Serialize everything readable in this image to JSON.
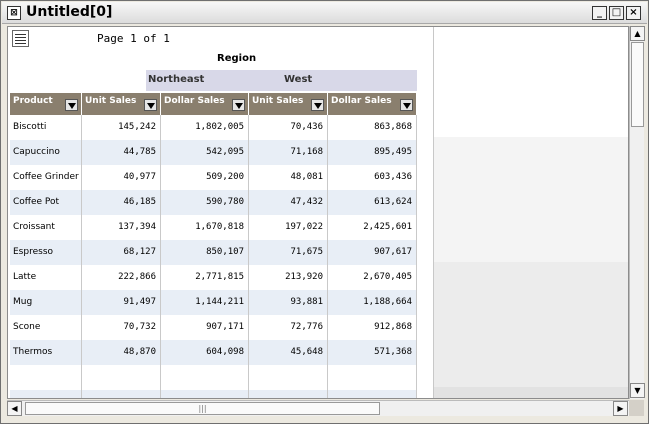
{
  "window": {
    "title": "Untitled[0]",
    "icon_glyph": "⊠",
    "buttons": {
      "minimize": "_",
      "maximize": "□",
      "close": "×"
    }
  },
  "report": {
    "page_info": "Page 1 of 1",
    "region_label": "Region",
    "regions": [
      "Northeast",
      "West"
    ],
    "columns": [
      "Product",
      "Unit Sales",
      "Dollar Sales",
      "Unit Sales",
      "Dollar Sales"
    ],
    "rows": [
      [
        "Biscotti",
        "145,242",
        "1,802,005",
        "70,436",
        "863,868"
      ],
      [
        "Capuccino",
        "44,785",
        "542,095",
        "71,168",
        "895,495"
      ],
      [
        "Coffee Grinder",
        "40,977",
        "509,200",
        "48,081",
        "603,436"
      ],
      [
        "Coffee Pot",
        "46,185",
        "590,780",
        "47,432",
        "613,624"
      ],
      [
        "Croissant",
        "137,394",
        "1,670,818",
        "197,022",
        "2,425,601"
      ],
      [
        "Espresso",
        "68,127",
        "850,107",
        "71,675",
        "907,617"
      ],
      [
        "Latte",
        "222,866",
        "2,771,815",
        "213,920",
        "2,670,405"
      ],
      [
        "Mug",
        "91,497",
        "1,144,211",
        "93,881",
        "1,188,664"
      ],
      [
        "Scone",
        "70,732",
        "907,171",
        "72,776",
        "912,868"
      ],
      [
        "Thermos",
        "48,870",
        "604,098",
        "45,648",
        "571,368"
      ]
    ]
  },
  "scrollbars": {
    "up_arrow": "▲",
    "down_arrow": "▼",
    "left_arrow": "◀",
    "right_arrow": "▶",
    "vgrip": "≡",
    "hgrip": "|||"
  },
  "colors": {
    "header_bg": "#8a7f6e",
    "region_band": "#d8d8e8",
    "alt_row": "#e8eef6"
  }
}
